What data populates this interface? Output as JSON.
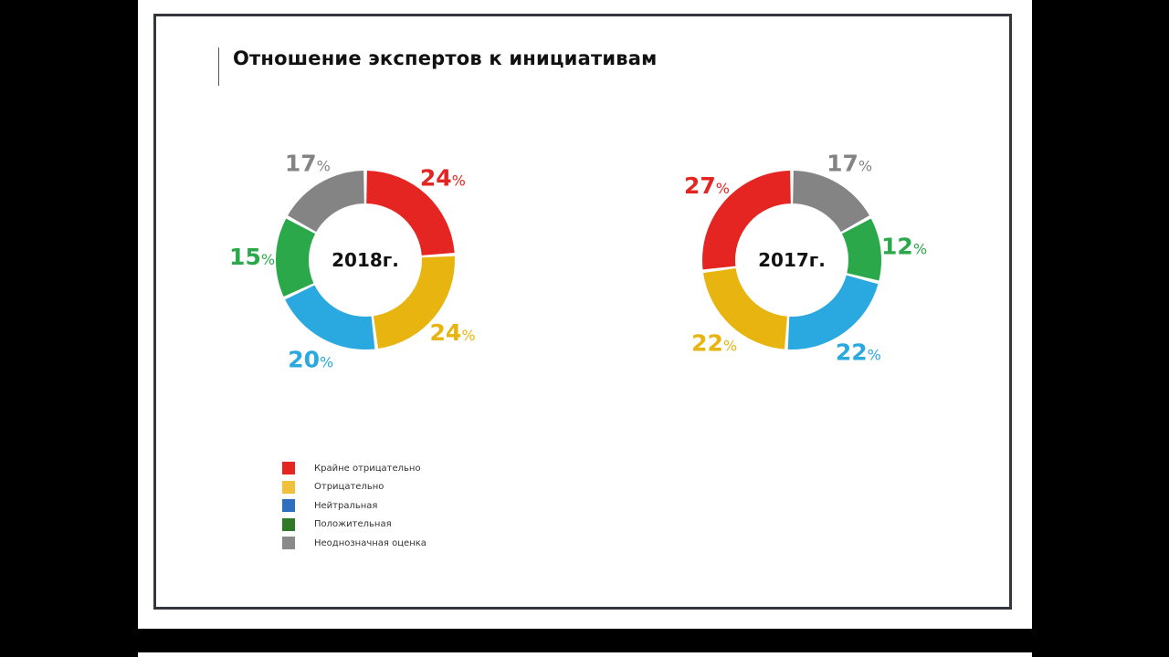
{
  "title": "Отношение экспертов к инициативам",
  "chart_data": [
    {
      "type": "pie",
      "center_label": "2018г.",
      "categories": [
        "Крайне отрицательно",
        "Отрицательно",
        "Нейтральная",
        "Положительная",
        "Неоднозначная оценка"
      ],
      "values": [
        24,
        24,
        20,
        15,
        17
      ],
      "value_labels": [
        "24",
        "24",
        "20",
        "15",
        "17"
      ],
      "unit": "%",
      "colors": [
        "#e42522",
        "#e8b40f",
        "#2aa9e0",
        "#2ba84a",
        "#848484"
      ]
    },
    {
      "type": "pie",
      "center_label": "2017г.",
      "categories": [
        "Неоднозначная оценка",
        "Положительная",
        "Нейтральная",
        "Отрицательно",
        "Крайне отрицательно"
      ],
      "values": [
        17,
        12,
        22,
        22,
        27
      ],
      "value_labels": [
        "17",
        "12",
        "22",
        "22",
        "27"
      ],
      "unit": "%",
      "colors": [
        "#848484",
        "#2ba84a",
        "#2aa9e0",
        "#e8b40f",
        "#e42522"
      ]
    }
  ],
  "legend": {
    "items": [
      {
        "label": "Крайне отрицательно",
        "color": "#e42522"
      },
      {
        "label": "Отрицательно",
        "color": "#f2c13c"
      },
      {
        "label": "Нейтральная",
        "color": "#2f6fc0"
      },
      {
        "label": "Положительная",
        "color": "#2f7a26"
      },
      {
        "label": "Неоднозначная оценка",
        "color": "#8a8a8a"
      }
    ]
  }
}
